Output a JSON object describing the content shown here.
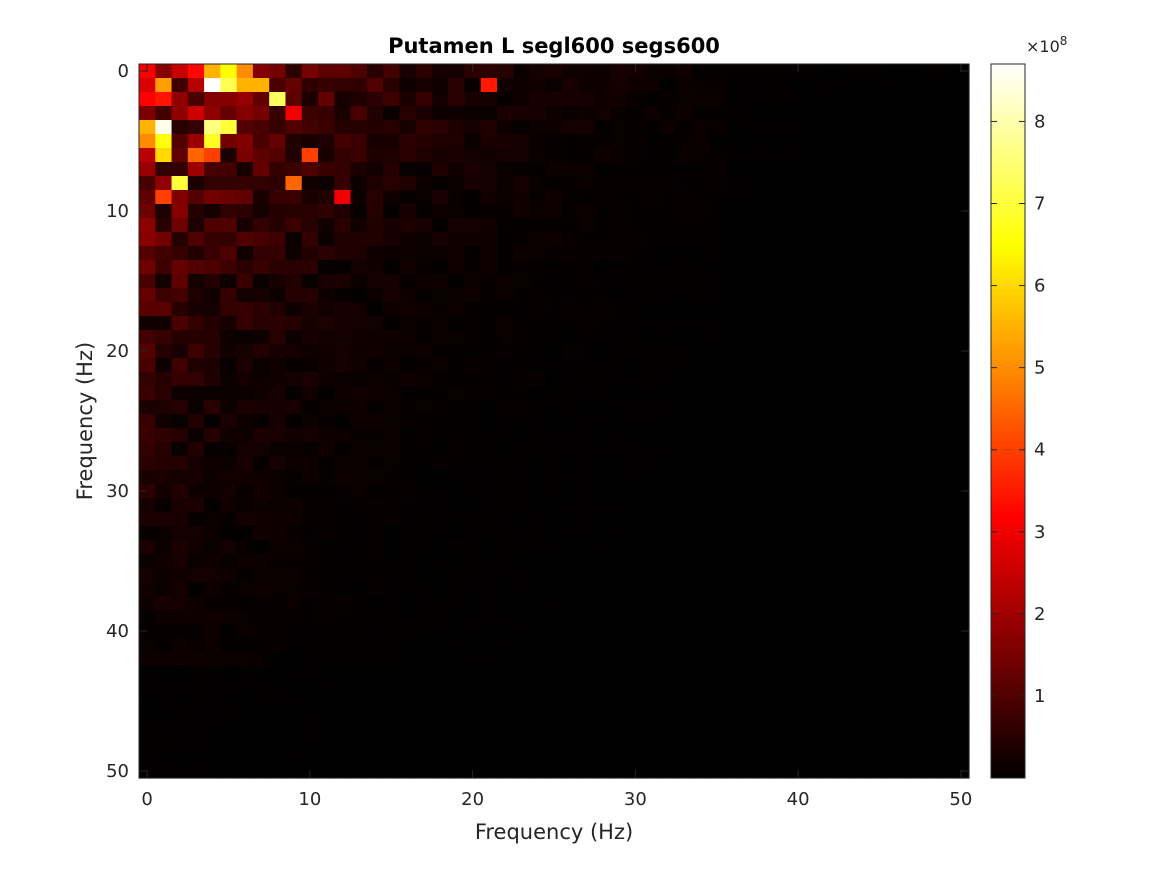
{
  "chart_data": {
    "type": "heatmap",
    "title": "Putamen L segl600 segs600",
    "xlabel": "Frequency (Hz)",
    "ylabel": "Frequency (Hz)",
    "x_range": [
      0,
      50
    ],
    "y_range": [
      0,
      50
    ],
    "y_axis_direction": "reversed",
    "x_ticks": [
      "0",
      "10",
      "20",
      "30",
      "40",
      "50"
    ],
    "y_ticks": [
      "0",
      "10",
      "20",
      "30",
      "40",
      "50"
    ],
    "colormap": "hot",
    "colorbar": {
      "placement": "right",
      "range": [
        0,
        8.7
      ],
      "ticks": [
        "1",
        "2",
        "3",
        "4",
        "5",
        "6",
        "7",
        "8"
      ],
      "exponent_label": "×10",
      "exponent_power": "8"
    },
    "grid": false,
    "hotspots": [
      {
        "x": 4,
        "y": 1,
        "value": 8.7
      },
      {
        "x": 1,
        "y": 4,
        "value": 8.5
      },
      {
        "x": 5,
        "y": 0,
        "value": 6.5
      },
      {
        "x": 5,
        "y": 1,
        "value": 7.2
      },
      {
        "x": 8,
        "y": 2,
        "value": 7.3
      },
      {
        "x": 4,
        "y": 4,
        "value": 7.6
      },
      {
        "x": 5,
        "y": 4,
        "value": 7.0
      },
      {
        "x": 4,
        "y": 5,
        "value": 6.8
      },
      {
        "x": 1,
        "y": 5,
        "value": 6.6
      },
      {
        "x": 1,
        "y": 6,
        "value": 6.0
      },
      {
        "x": 0,
        "y": 4,
        "value": 5.5
      },
      {
        "x": 2,
        "y": 8,
        "value": 7.0
      },
      {
        "x": 1,
        "y": 1,
        "value": 5.2
      },
      {
        "x": 4,
        "y": 0,
        "value": 5.5
      },
      {
        "x": 6,
        "y": 0,
        "value": 5.0
      },
      {
        "x": 6,
        "y": 1,
        "value": 5.5
      },
      {
        "x": 7,
        "y": 1,
        "value": 5.5
      },
      {
        "x": 3,
        "y": 6,
        "value": 4.5
      },
      {
        "x": 4,
        "y": 6,
        "value": 4.0
      },
      {
        "x": 1,
        "y": 9,
        "value": 4.0
      },
      {
        "x": 0,
        "y": 5,
        "value": 5.0
      },
      {
        "x": 10,
        "y": 6,
        "value": 4.0
      },
      {
        "x": 9,
        "y": 8,
        "value": 4.5
      },
      {
        "x": 12,
        "y": 9,
        "value": 3.0
      },
      {
        "x": 21,
        "y": 1,
        "value": 3.5
      },
      {
        "x": 9,
        "y": 3,
        "value": 3.0
      }
    ]
  }
}
